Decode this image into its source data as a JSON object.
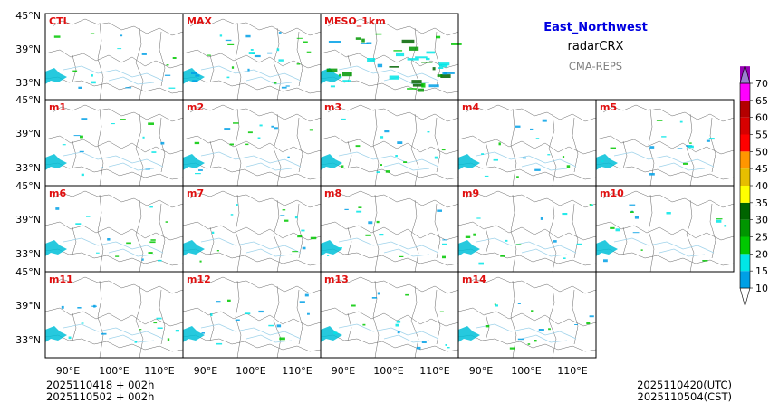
{
  "chart_data": {
    "type": "heatmap",
    "product": "radarCRX",
    "region": "East_Northwest",
    "model": "CMA-REPS",
    "panels": [
      "CTL",
      "MAX",
      "MESO_1km",
      "m1",
      "m2",
      "m3",
      "m4",
      "m5",
      "m6",
      "m7",
      "m8",
      "m9",
      "m10",
      "m11",
      "m12",
      "m13",
      "m14"
    ],
    "y_ticks": [
      "45°N",
      "39°N",
      "33°N"
    ],
    "x_ticks": [
      "90°E",
      "100°E",
      "110°E"
    ],
    "xlim": [
      85,
      115
    ],
    "ylim": [
      30,
      45
    ],
    "colorbar": {
      "ticks": [
        10,
        15,
        20,
        25,
        30,
        35,
        40,
        45,
        50,
        55,
        60,
        65,
        70
      ],
      "colors": [
        "#00a0e6",
        "#00e6e6",
        "#00c800",
        "#009600",
        "#006400",
        "#ffff00",
        "#e6be00",
        "#ff9600",
        "#ff0000",
        "#d70000",
        "#b40000",
        "#ff00ff",
        "#9600b4",
        "#9b7fd0"
      ]
    },
    "init_time_utc": "2025110418  +  002h",
    "init_time_cst": "2025110502  +  002h",
    "valid_time_utc": "2025110420(UTC)",
    "valid_time_cst": "2025110504(CST)"
  }
}
